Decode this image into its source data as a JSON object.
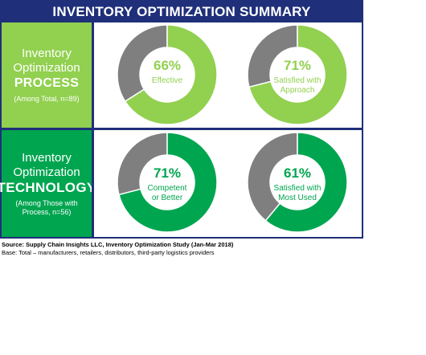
{
  "title": "INVENTORY OPTIMIZATION SUMMARY",
  "rows": [
    {
      "label_lines": [
        "Inventory",
        "Optimization"
      ],
      "label_strong": "PROCESS",
      "label_sub": [
        "(Among Total, n=89)"
      ],
      "color": "#92d050"
    },
    {
      "label_lines": [
        "Inventory",
        "Optimization"
      ],
      "label_strong": "TECHNOLOGY",
      "label_sub": [
        "(Among Those with",
        "Process, n=56)"
      ],
      "color": "#00a550"
    }
  ],
  "chart_data": [
    {
      "type": "pie",
      "style": "donut",
      "value": 66,
      "value_label": "66%",
      "caption": [
        "Effective"
      ],
      "color": "#92d050",
      "remainder_color": "#7f7f7f"
    },
    {
      "type": "pie",
      "style": "donut",
      "value": 71,
      "value_label": "71%",
      "caption": [
        "Satisfied with",
        "Approach"
      ],
      "color": "#92d050",
      "remainder_color": "#7f7f7f"
    },
    {
      "type": "pie",
      "style": "donut",
      "value": 71,
      "value_label": "71%",
      "caption": [
        "Competent",
        "or Better"
      ],
      "color": "#00a550",
      "remainder_color": "#7f7f7f"
    },
    {
      "type": "pie",
      "style": "donut",
      "value": 61,
      "value_label": "61%",
      "caption": [
        "Satisfied with",
        "Most Used"
      ],
      "color": "#00a550",
      "remainder_color": "#7f7f7f"
    }
  ],
  "source": "Source:  Supply Chain Insights LLC, Inventory Optimization Study (Jan-Mar 2018)",
  "base": "Base: Total – manufacturers, retailers, distributors, third-party logistics providers"
}
